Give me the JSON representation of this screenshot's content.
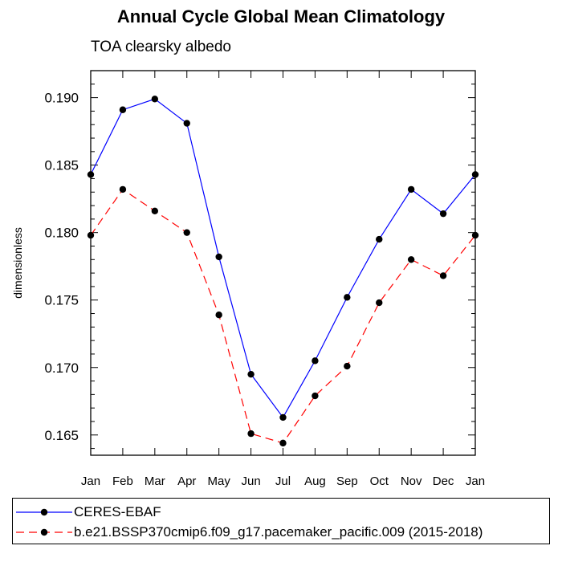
{
  "chart_data": {
    "type": "line",
    "title": "Annual Cycle Global Mean Climatology",
    "subtitle": "TOA clearsky albedo",
    "ylabel": "dimensionless",
    "xlabel": "",
    "categories": [
      "Jan",
      "Feb",
      "Mar",
      "Apr",
      "May",
      "Jun",
      "Jul",
      "Aug",
      "Sep",
      "Oct",
      "Nov",
      "Dec",
      "Jan"
    ],
    "ylim": [
      0.1635,
      0.192
    ],
    "yticks": [
      0.165,
      0.17,
      0.175,
      0.18,
      0.185,
      0.19
    ],
    "ytick_labels": [
      "0.165",
      "0.170",
      "0.175",
      "0.180",
      "0.185",
      "0.190"
    ],
    "legend_position": "bottom",
    "series": [
      {
        "name": "CERES-EBAF",
        "color": "#0000ff",
        "dash": "solid",
        "values": [
          0.1843,
          0.1891,
          0.1899,
          0.1881,
          0.1782,
          0.1695,
          0.1663,
          0.1705,
          0.1752,
          0.1795,
          0.1832,
          0.1814,
          0.1843
        ]
      },
      {
        "name": "b.e21.BSSP370cmip6.f09_g17.pacemaker_pacific.009 (2015-2018)",
        "color": "#ff0000",
        "dash": "dashed",
        "values": [
          0.1798,
          0.1832,
          0.1816,
          0.18,
          0.1739,
          0.1651,
          0.1644,
          0.1679,
          0.1701,
          0.1748,
          0.178,
          0.1768,
          0.1798
        ]
      }
    ]
  }
}
